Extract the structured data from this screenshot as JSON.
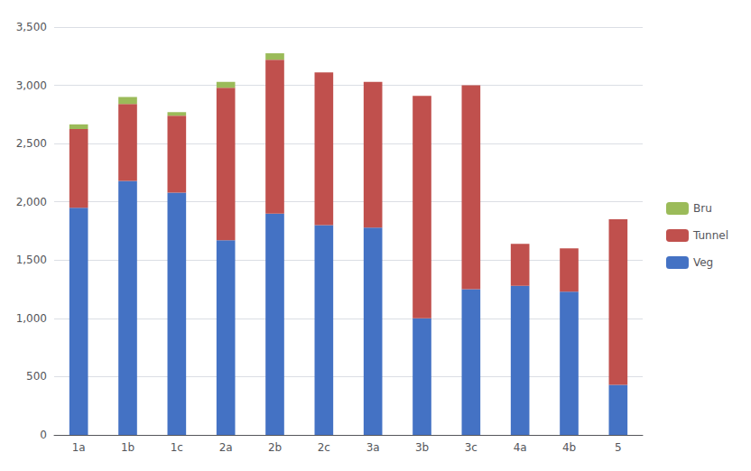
{
  "chart_data": {
    "type": "bar",
    "stacked": true,
    "categories": [
      "1a",
      "1b",
      "1c",
      "2a",
      "2b",
      "2c",
      "3a",
      "3b",
      "3c",
      "4a",
      "4b",
      "5"
    ],
    "series": [
      {
        "name": "Veg",
        "color": "#4472C4",
        "values": [
          1950,
          2180,
          2080,
          1670,
          1900,
          1800,
          1780,
          1000,
          1250,
          1280,
          1230,
          430
        ]
      },
      {
        "name": "Tunnel",
        "color": "#C0504D",
        "values": [
          675,
          660,
          660,
          1310,
          1320,
          1310,
          1250,
          1910,
          1750,
          360,
          370,
          1420
        ]
      },
      {
        "name": "Bru",
        "color": "#9BBB59",
        "values": [
          40,
          60,
          30,
          50,
          55,
          0,
          0,
          0,
          0,
          0,
          0,
          0
        ]
      }
    ],
    "ylim": [
      0,
      3500
    ],
    "yticks": [
      0,
      500,
      1000,
      1500,
      2000,
      2500,
      3000,
      3500
    ],
    "grid": true,
    "legend": "right"
  }
}
